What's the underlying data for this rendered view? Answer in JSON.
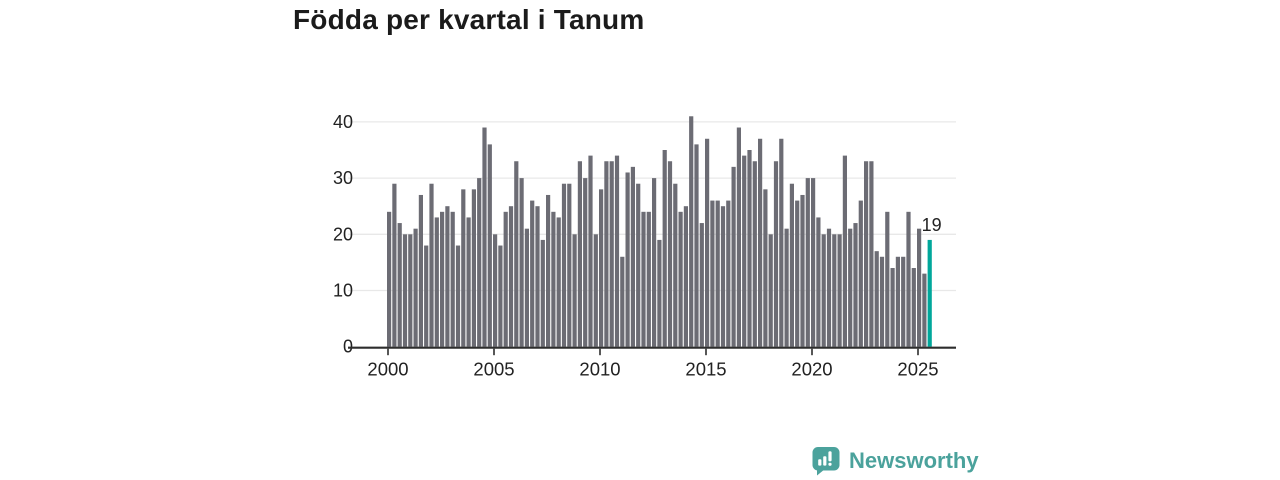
{
  "title": "Födda per kvartal i Tanum",
  "chart_data": {
    "type": "bar",
    "title": "Födda per kvartal i Tanum",
    "x_start": "2000-Q1",
    "x_end": "2025-Q3",
    "period": "quarterly",
    "series": [
      {
        "name": "Födda per kvartal",
        "values": [
          24,
          29,
          22,
          20,
          20,
          21,
          27,
          18,
          29,
          23,
          24,
          25,
          24,
          18,
          28,
          23,
          28,
          30,
          39,
          36,
          20,
          18,
          24,
          25,
          33,
          30,
          21,
          26,
          25,
          19,
          27,
          24,
          23,
          29,
          29,
          20,
          33,
          30,
          34,
          20,
          28,
          33,
          33,
          34,
          16,
          31,
          32,
          29,
          24,
          24,
          30,
          19,
          35,
          33,
          29,
          24,
          25,
          41,
          36,
          22,
          37,
          26,
          26,
          25,
          26,
          32,
          39,
          34,
          35,
          33,
          37,
          28,
          20,
          33,
          37,
          21,
          29,
          26,
          27,
          30,
          30,
          23,
          20,
          21,
          20,
          20,
          34,
          21,
          22,
          26,
          33,
          33,
          17,
          16,
          24,
          14,
          16,
          16,
          24,
          14,
          21,
          13,
          19
        ]
      }
    ],
    "x_tick_labels": [
      "2000",
      "2005",
      "2010",
      "2015",
      "2020",
      "2025"
    ],
    "y_tick_values": [
      0,
      10,
      20,
      30,
      40
    ],
    "ylim": [
      0,
      42
    ],
    "grid": true,
    "legend": "none",
    "bar_color": "#6c6c74",
    "highlight_index": 102,
    "highlight_color": "#00a79b",
    "annotation": {
      "text": "19",
      "target": "last-bar"
    },
    "axis_color": "#2d2d2d",
    "grid_color": "#e8e8e8",
    "tick_label_color": "#222222"
  },
  "footer": {
    "brand": "Newsworthy",
    "brand_color": "#4ba29c"
  }
}
